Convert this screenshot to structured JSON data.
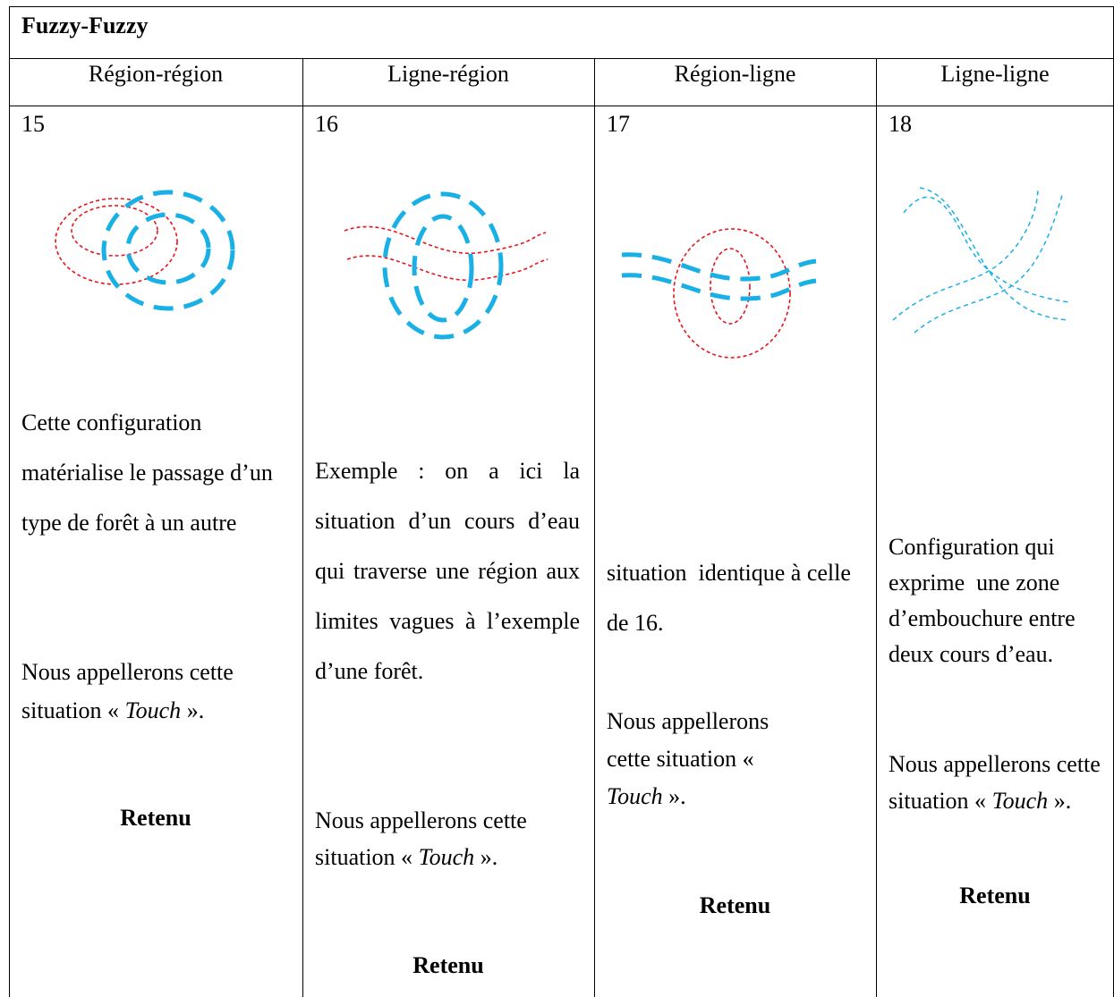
{
  "table": {
    "title": "Fuzzy-Fuzzy",
    "columns": [
      {
        "header": "Région-région",
        "number": "15",
        "description": "Cette configuration matérialise le passage d’un type de forêt à un autre",
        "naming": {
          "before": "Nous appellerons cette situation « ",
          "term": "Touch",
          "after": " »."
        },
        "verdict": "Retenu"
      },
      {
        "header": "Ligne-région",
        "number": "16",
        "description": "Exemple : on a ici la situation d’un cours d’eau qui traverse une région aux limites vagues à l’exemple d’une forêt.",
        "naming": {
          "before": "Nous appellerons cette situation « ",
          "term": "Touch",
          "after": " »."
        },
        "verdict": "Retenu"
      },
      {
        "header": "Région-ligne",
        "number": "17",
        "description": "situation  identique à celle de 16.",
        "naming": {
          "before": "Nous appellerons cette situation « ",
          "term": "Touch",
          "after": " »."
        },
        "verdict": "Retenu"
      },
      {
        "header": "Ligne-ligne",
        "number": "18",
        "description": "Configuration qui exprime  une zone d’embouchure entre deux cours d’eau.",
        "naming": {
          "before": "Nous appellerons cette situation « ",
          "term": "Touch",
          "after": " »."
        },
        "verdict": "Retenu"
      }
    ]
  }
}
